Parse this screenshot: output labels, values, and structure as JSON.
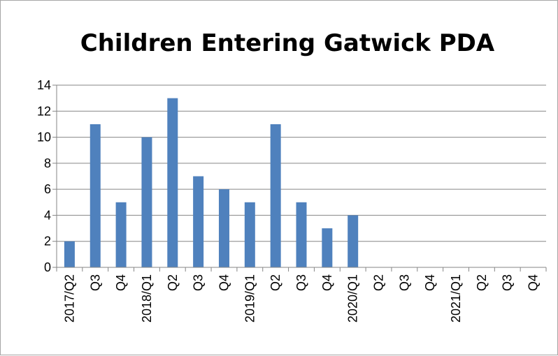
{
  "chart_data": {
    "type": "bar",
    "title": "Children Entering Gatwick PDA",
    "xlabel": "",
    "ylabel": "",
    "categories": [
      "2017/Q2",
      "Q3",
      "Q4",
      "2018/Q1",
      "Q2",
      "Q3",
      "Q4",
      "2019/Q1",
      "Q2",
      "Q3",
      "Q4",
      "2020/Q1",
      "Q2",
      "Q3",
      "Q4",
      "2021/Q1",
      "Q2",
      "Q3",
      "Q4"
    ],
    "values": [
      2,
      11,
      5,
      10,
      13,
      7,
      6,
      5,
      11,
      5,
      3,
      4,
      null,
      null,
      null,
      null,
      null,
      null,
      null
    ],
    "ylim": [
      0,
      14
    ],
    "yticks": [
      "0",
      "2",
      "4",
      "6",
      "8",
      "10",
      "12",
      "14"
    ],
    "grid": true,
    "legend": "none",
    "bar_color": "#4f81bd"
  }
}
